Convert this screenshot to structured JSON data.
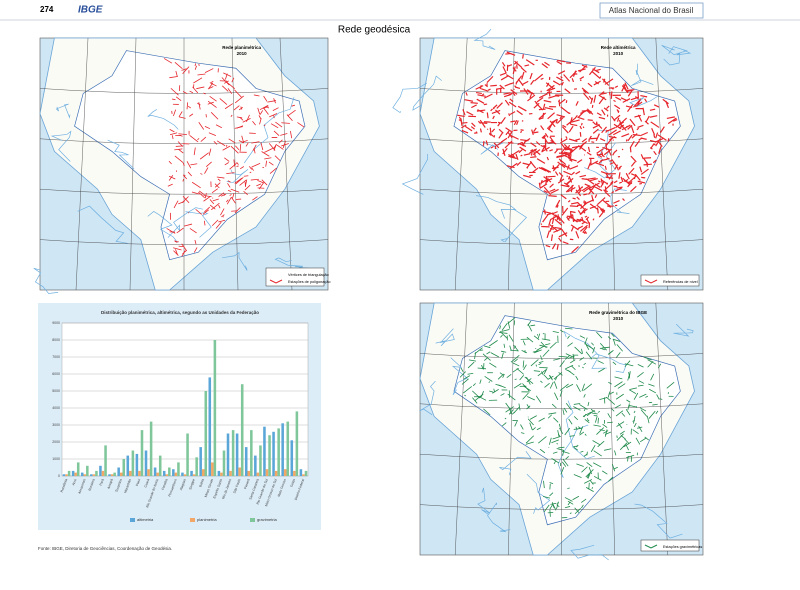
{
  "header": {
    "page_number": "274",
    "logo": "IBGE",
    "atlas_title": "Atlas Nacional do Brasil"
  },
  "title": "Rede geodésica",
  "maps": [
    {
      "title": "Rede planimétrica",
      "year": "2010",
      "legend": [
        "Vértices de triangulação",
        "Estações de poligonação"
      ]
    },
    {
      "title": "Rede altimétrica",
      "year": "2010",
      "legend": [
        "Referências de nível"
      ]
    },
    {
      "title": "Rede gravimétrica do IBGE",
      "year": "2010",
      "legend": [
        "Estações gravimétricas"
      ]
    }
  ],
  "chart_data": {
    "type": "bar",
    "title": "Distribuição planimétrica, altimétrica, segundo as Unidades da Federação",
    "categories": [
      "Rondônia",
      "Acre",
      "Amazonas",
      "Roraima",
      "Pará",
      "Amapá",
      "Tocantins",
      "Maranhão",
      "Piauí",
      "Ceará",
      "Rio Grande do Norte",
      "Paraíba",
      "Pernambuco",
      "Alagoas",
      "Sergipe",
      "Bahia",
      "Minas Gerais",
      "Espírito Santo",
      "Rio de Janeiro",
      "São Paulo",
      "Paraná",
      "Santa Catarina",
      "Rio Grande do Sul",
      "Mato Grosso do Sul",
      "Mato Grosso",
      "Goiás",
      "Distrito Federal"
    ],
    "series": [
      {
        "name": "altimetria",
        "color": "#5aa6d8",
        "values": [
          100,
          300,
          200,
          100,
          600,
          100,
          500,
          1200,
          1300,
          1500,
          500,
          300,
          400,
          200,
          300,
          1700,
          5800,
          300,
          2500,
          2500,
          1700,
          1200,
          2900,
          2600,
          3100,
          2100,
          400
        ]
      },
      {
        "name": "planimetria",
        "color": "#f2a766",
        "values": [
          100,
          200,
          100,
          100,
          300,
          100,
          200,
          300,
          300,
          400,
          200,
          100,
          200,
          100,
          100,
          400,
          800,
          200,
          300,
          500,
          300,
          200,
          400,
          300,
          400,
          300,
          100
        ]
      },
      {
        "name": "gravimetria",
        "color": "#7fc79a",
        "values": [
          300,
          800,
          600,
          300,
          1800,
          200,
          1000,
          1500,
          2700,
          3200,
          1200,
          500,
          800,
          2500,
          1100,
          5000,
          8000,
          1500,
          2700,
          5400,
          2700,
          1800,
          2400,
          2800,
          3200,
          3800,
          300
        ]
      }
    ],
    "ylim": [
      0,
      9000
    ],
    "yticks": [
      0,
      1000,
      2000,
      3000,
      4000,
      5000,
      6000,
      7000,
      8000,
      9000
    ],
    "grid": true
  },
  "source": "Fonte: IBGE, Diretoria de Geociências, Coordenação de Geodésia."
}
